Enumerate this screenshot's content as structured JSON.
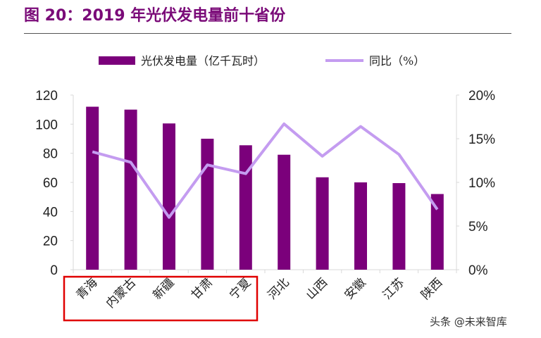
{
  "title": "图 20：2019 年光伏发电量前十省份",
  "watermark": "头条 @未来智库",
  "chart_data": {
    "type": "bar",
    "categories": [
      "青海",
      "内蒙古",
      "新疆",
      "甘肃",
      "宁夏",
      "河北",
      "山西",
      "安徽",
      "江苏",
      "陕西"
    ],
    "series": [
      {
        "name": "光伏发电量（亿千瓦时）",
        "type": "bar",
        "axis": "left",
        "color": "#7b007b",
        "values": [
          112,
          110,
          100.5,
          90,
          85.5,
          79,
          63.5,
          60,
          59.5,
          52
        ]
      },
      {
        "name": "同比（%）",
        "type": "line",
        "axis": "right",
        "color": "#c49cf0",
        "values": [
          13.5,
          12.3,
          6.0,
          12.0,
          11.0,
          16.7,
          13.0,
          16.4,
          13.2,
          6.9
        ]
      }
    ],
    "left_axis": {
      "range": [
        0,
        120
      ],
      "ticks": [
        "0",
        "20",
        "40",
        "60",
        "80",
        "100",
        "120"
      ]
    },
    "right_axis": {
      "range": [
        0,
        20
      ],
      "ticks": [
        "0%",
        "5%",
        "10%",
        "15%",
        "20%"
      ]
    },
    "legend_placement": "top",
    "highlight": {
      "categories": [
        "青海",
        "内蒙古",
        "新疆",
        "甘肃",
        "宁夏"
      ],
      "color": "#e00000"
    }
  }
}
